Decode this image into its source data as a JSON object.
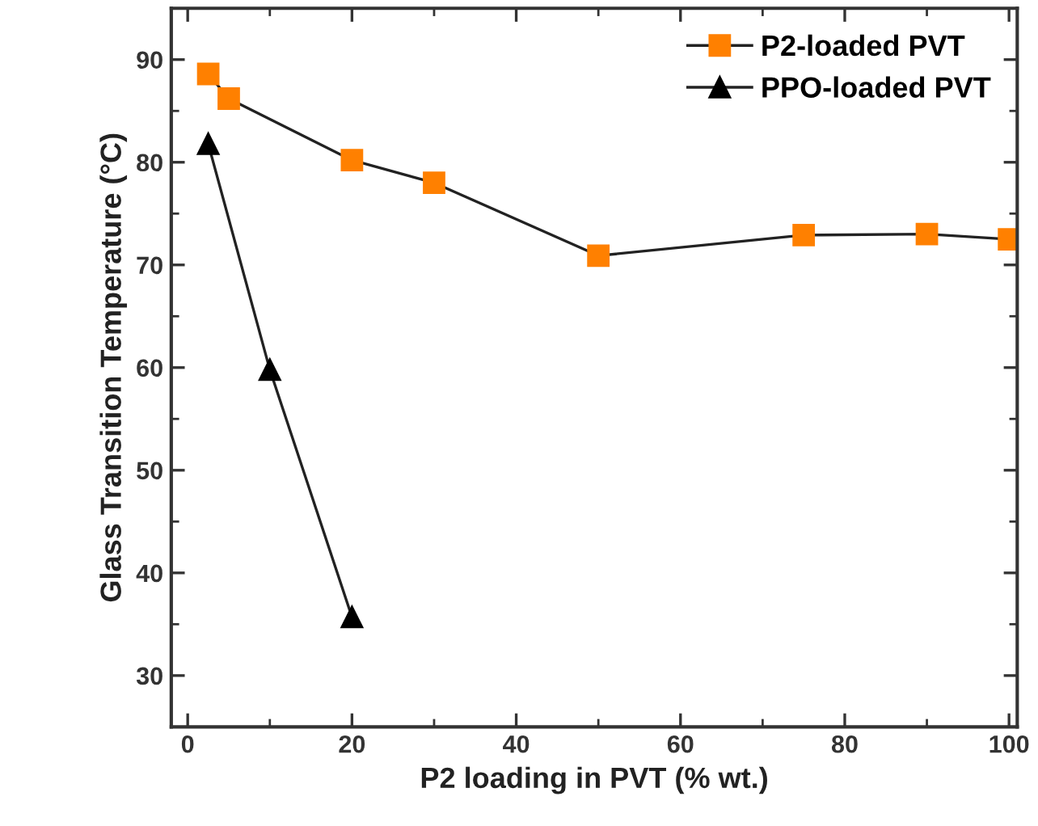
{
  "chart_data": {
    "type": "line",
    "xlabel": "P2 loading in PVT (% wt.)",
    "ylabel": "Glass Transition Temperature (°C)",
    "xlim": [
      -2,
      101
    ],
    "ylim": [
      25,
      95
    ],
    "xticks": [
      0,
      20,
      40,
      60,
      80,
      100
    ],
    "yticks": [
      30,
      40,
      50,
      60,
      70,
      80,
      90
    ],
    "grid": false,
    "legend": "top right",
    "series": [
      {
        "name": "P2-loaded PVT",
        "color": "#ff8000",
        "marker": "square",
        "x": [
          2.5,
          5,
          20,
          30,
          50,
          75,
          90,
          100
        ],
        "values": [
          88.6,
          86.2,
          80.2,
          78.0,
          70.9,
          72.9,
          73.0,
          72.5
        ]
      },
      {
        "name": "PPO-loaded PVT",
        "color": "#000000",
        "marker": "triangle",
        "x": [
          2.5,
          10,
          20
        ],
        "values": [
          81.8,
          59.8,
          35.7
        ]
      }
    ]
  }
}
